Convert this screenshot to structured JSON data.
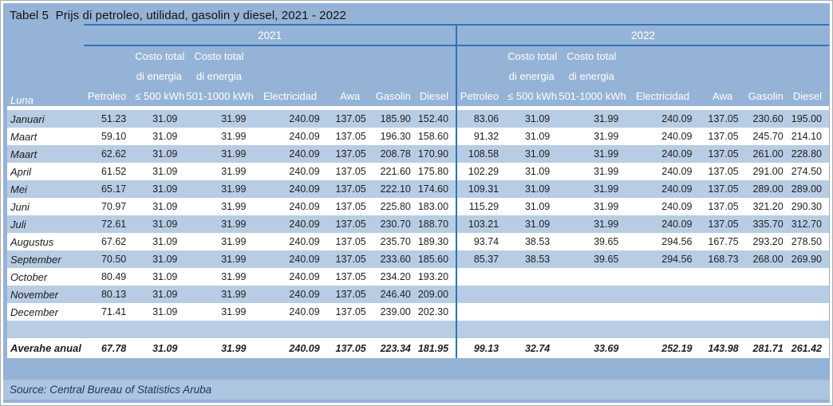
{
  "title": "Tabel 5  Prijs di petroleo, utilidad, gasolin y diesel, 2021 - 2022",
  "source": "Source: Central Bureau of Statistics Aruba",
  "years": [
    "2021",
    "2022"
  ],
  "luna_header": "Luna",
  "col_headers": [
    {
      "sub1": "",
      "sub2": "",
      "label": "Petroleo",
      "align": "al-r"
    },
    {
      "sub1": "Costo total",
      "sub2": "di energia",
      "label": "≤ 500 kWh",
      "align": "al-c"
    },
    {
      "sub1": "Costo total",
      "sub2": "di energia",
      "label": "501-1000 kWh",
      "align": "al-c"
    },
    {
      "sub1": "",
      "sub2": "",
      "label": "Electricidad",
      "align": "al-c"
    },
    {
      "sub1": "",
      "sub2": "",
      "label": "Awa",
      "align": "al-c"
    },
    {
      "sub1": "",
      "sub2": "",
      "label": "Gasolin",
      "align": "al-r"
    },
    {
      "sub1": "",
      "sub2": "",
      "label": "Diesel",
      "align": "al-r"
    }
  ],
  "rows": [
    {
      "luna": "Januari",
      "style": "normal",
      "y2021": [
        "51.23",
        "31.09",
        "31.99",
        "240.09",
        "137.05",
        "185.90",
        "152.40"
      ],
      "y2022": [
        "83.06",
        "31.09",
        "31.99",
        "240.09",
        "137.05",
        "230.60",
        "195.00"
      ]
    },
    {
      "luna": "Maart",
      "style": "normal",
      "y2021": [
        "59.10",
        "31.09",
        "31.99",
        "240.09",
        "137.05",
        "196.30",
        "158.60"
      ],
      "y2022": [
        "91.32",
        "31.09",
        "31.99",
        "240.09",
        "137.05",
        "245.70",
        "214.10"
      ]
    },
    {
      "luna": "Maart",
      "style": "normal",
      "y2021": [
        "62.62",
        "31.09",
        "31.99",
        "240.09",
        "137.05",
        "208.78",
        "170.90"
      ],
      "y2022": [
        "108.58",
        "31.09",
        "31.99",
        "240.09",
        "137.05",
        "261.00",
        "228.80"
      ]
    },
    {
      "luna": "April",
      "style": "normal",
      "y2021": [
        "61.52",
        "31.09",
        "31.99",
        "240.09",
        "137.05",
        "221.60",
        "175.80"
      ],
      "y2022": [
        "102.29",
        "31.09",
        "31.99",
        "240.09",
        "137.05",
        "291.00",
        "274.50"
      ]
    },
    {
      "luna": "Mei",
      "style": "normal",
      "y2021": [
        "65.17",
        "31.09",
        "31.99",
        "240.09",
        "137.05",
        "222.10",
        "174.60"
      ],
      "y2022": [
        "109.31",
        "31.09",
        "31.99",
        "240.09",
        "137.05",
        "289.00",
        "289.00"
      ]
    },
    {
      "luna": "Juni",
      "style": "normal",
      "y2021": [
        "70.97",
        "31.09",
        "31.99",
        "240.09",
        "137.05",
        "225.80",
        "183.00"
      ],
      "y2022": [
        "115.29",
        "31.09",
        "31.99",
        "240.09",
        "137.05",
        "321.20",
        "290.30"
      ]
    },
    {
      "luna": "Juli",
      "style": "normal",
      "y2021": [
        "72.61",
        "31.09",
        "31.99",
        "240.09",
        "137.05",
        "230.70",
        "188.70"
      ],
      "y2022": [
        "103.21",
        "31.09",
        "31.99",
        "240.09",
        "137.05",
        "335.70",
        "312.70"
      ]
    },
    {
      "luna": "Augustus",
      "style": "normal",
      "y2021": [
        "67.62",
        "31.09",
        "31.99",
        "240.09",
        "137.05",
        "235.70",
        "189.30"
      ],
      "y2022": [
        "93.74",
        "38.53",
        "39.65",
        "294.56",
        "167.75",
        "293.20",
        "278.50"
      ]
    },
    {
      "luna": "September",
      "style": "normal",
      "y2021": [
        "70.50",
        "31.09",
        "31.99",
        "240.09",
        "137.05",
        "233.60",
        "185.60"
      ],
      "y2022": [
        "85.37",
        "38.53",
        "39.65",
        "294.56",
        "168.73",
        "268.00",
        "269.90"
      ]
    },
    {
      "luna": "October",
      "style": "normal",
      "y2021": [
        "80.49",
        "31.09",
        "31.99",
        "240.09",
        "137.05",
        "234.20",
        "193.20"
      ],
      "y2022": [
        "",
        "",
        "",
        "",
        "",
        "",
        ""
      ]
    },
    {
      "luna": "November",
      "style": "normal",
      "y2021": [
        "80.13",
        "31.09",
        "31.99",
        "240.09",
        "137.05",
        "246.40",
        "209.00"
      ],
      "y2022": [
        "",
        "",
        "",
        "",
        "",
        "",
        ""
      ]
    },
    {
      "luna": "December",
      "style": "normal",
      "y2021": [
        "71.41",
        "31.09",
        "31.99",
        "240.09",
        "137.05",
        "239.00",
        "202.30"
      ],
      "y2022": [
        "",
        "",
        "",
        "",
        "",
        "",
        ""
      ]
    },
    {
      "luna": "",
      "style": "blank",
      "y2021": [
        "",
        "",
        "",
        "",
        "",
        "",
        ""
      ],
      "y2022": [
        "",
        "",
        "",
        "",
        "",
        "",
        ""
      ]
    },
    {
      "luna": "Averahe anual",
      "style": "average",
      "y2021": [
        "67.78",
        "31.09",
        "31.99",
        "240.09",
        "137.05",
        "223.34",
        "181.95"
      ],
      "y2022": [
        "99.13",
        "32.74",
        "33.69",
        "252.19",
        "143.98",
        "281.71",
        "261.42"
      ]
    }
  ],
  "colors": {
    "panel_bg": "#95b3d7",
    "band_bg": "#b8cce4",
    "line_blue": "#2e75b6",
    "header_text": "#ffffff",
    "data_text": "#1f1f1f",
    "source_text": "#17375e",
    "source_bar_bg": "#aec5e2"
  }
}
